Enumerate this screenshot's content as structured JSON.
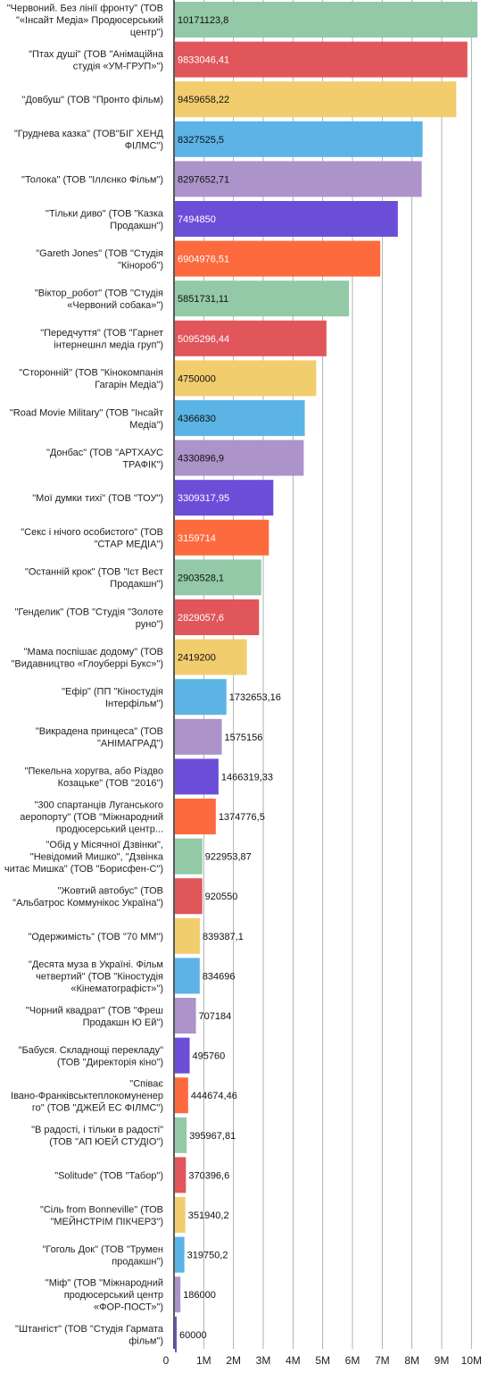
{
  "chart_data": {
    "type": "bar",
    "orientation": "horizontal",
    "grid": true,
    "xlim": [
      0,
      10500000
    ],
    "x_ticks": [
      0,
      1000000,
      2000000,
      3000000,
      4000000,
      5000000,
      6000000,
      7000000,
      8000000,
      9000000,
      10000000
    ],
    "x_tick_labels": [
      "0",
      "1M",
      "2M",
      "3M",
      "4M",
      "5M",
      "6M",
      "7M",
      "8M",
      "9M",
      "10M"
    ],
    "colors": [
      "#93c9a6",
      "#e0565b",
      "#f2cd6e",
      "#5bb4e5",
      "#ac93ca",
      "#6b4ed8",
      "#fd6a3e"
    ],
    "categories": [
      "\"Червоний. Без лінії фронту\" (ТОВ \"«Інсайт Медіа» Продюсерський центр\")",
      "\"Птах душі\" (ТОВ \"Анімаційна студія «УМ-ГРУП»\")",
      "\"Довбуш\" (ТОВ \"Пронто фільм)",
      "\"Груднева казка\" (ТОВ\"БІГ ХЕНД ФІЛМС\")",
      "\"Толока\" (ТОВ \"Іллєнко Фільм\")",
      "\"Тільки диво\" (ТОВ \"Казка Продакшн\")",
      "\"Gareth Jones\" (ТОВ \"Студія \"Кінороб\")",
      "\"Віктор_робот\" (ТОВ \"Студія «Червоний собака»\")",
      "\"Передчуття\" (ТОВ \"Гарнет інтернешнл медіа груп\")",
      "\"Сторонній\" (ТОВ \"Кінокомпанія Гагарін Медіа\")",
      "\"Road Movie Military\" (ТОВ \"Інсайт Медіа\")",
      "\"Донбас\" (ТОВ \"АРТХАУС ТРАФІК\")",
      "\"Мої думки тихі\" (ТОВ \"ТОУ\")",
      "\"Секс і нічого особистого\" (ТОВ \"СТАР МЕДІА\")",
      "\"Останній крок\" (ТОВ \"Іст Вест Продакшн\")",
      "\"Генделик\" (ТОВ \"Студія \"Золоте руно\")",
      "\"Мама поспішає додому\" (ТОВ \"Видавництво «Глоуберрі Букс»\")",
      "\"Ефір\" (ПП \"Кіностудія Інтерфільм\")",
      "\"Викрадена принцеса\" (ТОВ \"АНІМАГРАД\")",
      "\"Пекельна хоругва, або Різдво Козацьке\" (ТОВ \"2016\")",
      "\"300 спартанців Луганського аеропорту\" (ТОВ \"Міжнародний продюсерський центр...",
      "\"Обід у Місячної Дзвінки\", \"Невідомий Мишко\", \"Дзвінка читає Мишка\" (ТОВ \"Борисфен-С\")",
      "\"Жовтий автобус\" (ТОВ \"Альбатрос Коммунікос Україна\")",
      "\"Одержимість\" (ТОВ \"70 ММ\")",
      "\"Десята муза в Україні. Фільм четвертий\" (ТОВ \"Кіностудія «Кінематографіст»\")",
      "\"Чорний квадрат\" (ТОВ \"Фреш Продакшн Ю Ей\")",
      "\"Бабуся. Складнощі перекладу\" (ТОВ \"Директорія кіно\")",
      "\"Співає Івано-Франківськтеплокомуненерго\" (ТОВ \"ДЖЕЙ ЕС ФІЛМС\")",
      "\"В радості, і тільки в радості\" (ТОВ \"АП ЮЕЙ СТУДІО\")",
      "\"Solitude\" (ТОВ \"Табор\")",
      "\"Сіль from Bonneville\" (ТОВ \"МЕЙНСТРІМ ПІКЧЕРЗ\")",
      "\"Гоголь Док\" (ТОВ \"Трумен продакшн\")",
      "\"Міф\" (ТОВ \"Міжнародний продюсерський центр «ФОР-ПОСТ»\")",
      "\"Штангіст\" (ТОВ \"Студія Гармата фільм\")"
    ],
    "label_lines": [
      [
        "\"Червоний. Без лінії фронту\" (ТОВ",
        "\"«Інсайт Медіа» Продюсерський",
        "центр\")"
      ],
      [
        "\"Птах душі\" (ТОВ \"Анімаційна",
        "студія «УМ-ГРУП»\")"
      ],
      [
        "\"Довбуш\" (ТОВ \"Пронто фільм)"
      ],
      [
        "\"Груднева казка\" (ТОВ\"БІГ ХЕНД",
        "ФІЛМС\")"
      ],
      [
        "\"Толока\" (ТОВ \"Іллєнко Фільм\")"
      ],
      [
        "\"Тільки диво\" (ТОВ \"Казка",
        "Продакшн\")"
      ],
      [
        "\"Gareth Jones\" (ТОВ \"Студія",
        "\"Кінороб\")"
      ],
      [
        "\"Віктор_робот\" (ТОВ \"Студія",
        "«Червоний собака»\")"
      ],
      [
        "\"Передчуття\" (ТОВ \"Гарнет",
        "інтернешнл медіа груп\")"
      ],
      [
        "\"Сторонній\" (ТОВ \"Кінокомпанія",
        "Гагарін Медіа\")"
      ],
      [
        "\"Road Movie Military\" (ТОВ \"Інсайт",
        "Медіа\")"
      ],
      [
        "\"Донбас\" (ТОВ \"АРТХАУС",
        "ТРАФІК\")"
      ],
      [
        "\"Мої думки тихі\" (ТОВ \"ТОУ\")"
      ],
      [
        "\"Секс і нічого особистого\" (ТОВ",
        "\"СТАР МЕДІА\")"
      ],
      [
        "\"Останній крок\" (ТОВ \"Іст Вест",
        "Продакшн\")"
      ],
      [
        "\"Генделик\" (ТОВ \"Студія \"Золоте",
        "руно\")"
      ],
      [
        "\"Мама поспішає додому\" (ТОВ",
        "\"Видавництво «Глоуберрі Букс»\")"
      ],
      [
        "\"Ефір\" (ПП \"Кіностудія",
        "Інтерфільм\")"
      ],
      [
        "\"Викрадена принцеса\" (ТОВ",
        "\"АНІМАГРАД\")"
      ],
      [
        "\"Пекельна хоругва, або Різдво",
        "Козацьке\" (ТОВ \"2016\")"
      ],
      [
        "\"300 спартанців Луганського",
        "аеропорту\" (ТОВ \"Міжнародний",
        "продюсерський центр..."
      ],
      [
        "\"Обід у Місячної Дзвінки\",",
        "\"Невідомий Мишко\", \"Дзвінка",
        "читає Мишка\" (ТОВ \"Борисфен-С\")"
      ],
      [
        "\"Жовтий автобус\" (ТОВ",
        "\"Альбатрос Коммунікос Україна\")"
      ],
      [
        "\"Одержимість\" (ТОВ \"70 ММ\")"
      ],
      [
        "\"Десята муза в Україні. Фільм",
        "четвертий\" (ТОВ \"Кіностудія",
        "«Кінематографіст»\")"
      ],
      [
        "\"Чорний квадрат\" (ТОВ \"Фреш",
        "Продакшн Ю Ей\")"
      ],
      [
        "\"Бабуся. Складнощі перекладу\"",
        "(ТОВ \"Директорія кіно\")"
      ],
      [
        "\"Співає",
        "Івано-Франківськтеплокомуненер",
        "го\" (ТОВ \"ДЖЕЙ ЕС ФІЛМС\")"
      ],
      [
        "\"В радості, і тільки в радості\"",
        "(ТОВ \"АП ЮЕЙ СТУДІО\")"
      ],
      [
        "\"Solitude\" (ТОВ \"Табор\")"
      ],
      [
        "\"Сіль from Bonneville\" (ТОВ",
        "\"МЕЙНСТРІМ ПІКЧЕРЗ\")"
      ],
      [
        "\"Гоголь Док\" (ТОВ \"Трумен",
        "продакшн\")"
      ],
      [
        "\"Міф\" (ТОВ \"Міжнародний",
        "продюсерський центр",
        "«ФОР-ПОСТ»\")"
      ],
      [
        "\"Штангіст\" (ТОВ \"Студія Гармата",
        "фільм\")"
      ]
    ],
    "values": [
      10171123.8,
      9833046.41,
      9459658.22,
      8327525.5,
      8297652.71,
      7494850,
      6904976.51,
      5851731.11,
      5095296.44,
      4750000,
      4366830,
      4330896.9,
      3309317.95,
      3159714,
      2903528.1,
      2829057.6,
      2419200,
      1732653.16,
      1575156,
      1466319.33,
      1374776.5,
      922953.87,
      920550,
      839387.1,
      834696,
      707184,
      495760,
      444674.46,
      395967.81,
      370396.6,
      351940.2,
      319750.2,
      186000,
      60000
    ],
    "data_labels": [
      "10171123,8",
      "9833046,41",
      "9459658,22",
      "8327525,5",
      "8297652,71",
      "7494850",
      "6904976,51",
      "5851731,11",
      "5095296,44",
      "4750000",
      "4366830",
      "4330896,9",
      "3309317,95",
      "3159714",
      "2903528,1",
      "2829057,6",
      "2419200",
      "1732653,16",
      "1575156",
      "1466319,33",
      "1374776,5",
      "922953,87",
      "920550",
      "839387,1",
      "834696",
      "707184",
      "495760",
      "444674,46",
      "395967,81",
      "370396,6",
      "351940,2",
      "319750,2",
      "186000",
      "60000"
    ]
  }
}
